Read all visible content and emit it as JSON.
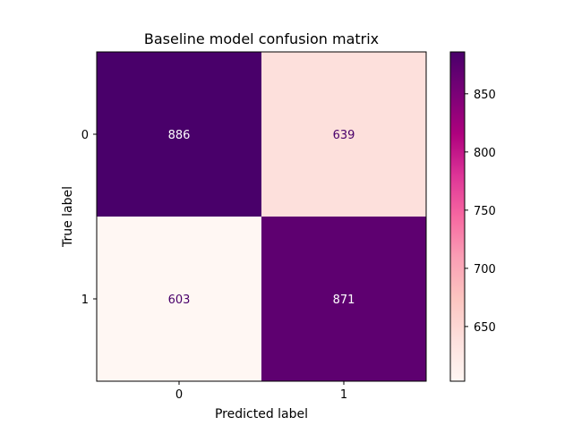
{
  "chart_data": {
    "type": "heatmap",
    "title": "Baseline model confusion matrix",
    "xlabel": "Predicted label",
    "ylabel": "True label",
    "x_categories": [
      "0",
      "1"
    ],
    "y_categories": [
      "0",
      "1"
    ],
    "matrix": [
      [
        886,
        639
      ],
      [
        603,
        871
      ]
    ],
    "colormap": "RdPu",
    "colormap_stops": [
      "#fff7f3",
      "#fde0dd",
      "#fcc5c0",
      "#fa9fb5",
      "#f768a1",
      "#dd3497",
      "#ae017e",
      "#7a0177",
      "#49006a"
    ],
    "text_colors": {
      "on_dark": "#ffffff",
      "on_light": "#49006a"
    },
    "colorbar": {
      "range": [
        603,
        886
      ],
      "ticks": [
        650,
        700,
        750,
        800,
        850
      ]
    }
  }
}
